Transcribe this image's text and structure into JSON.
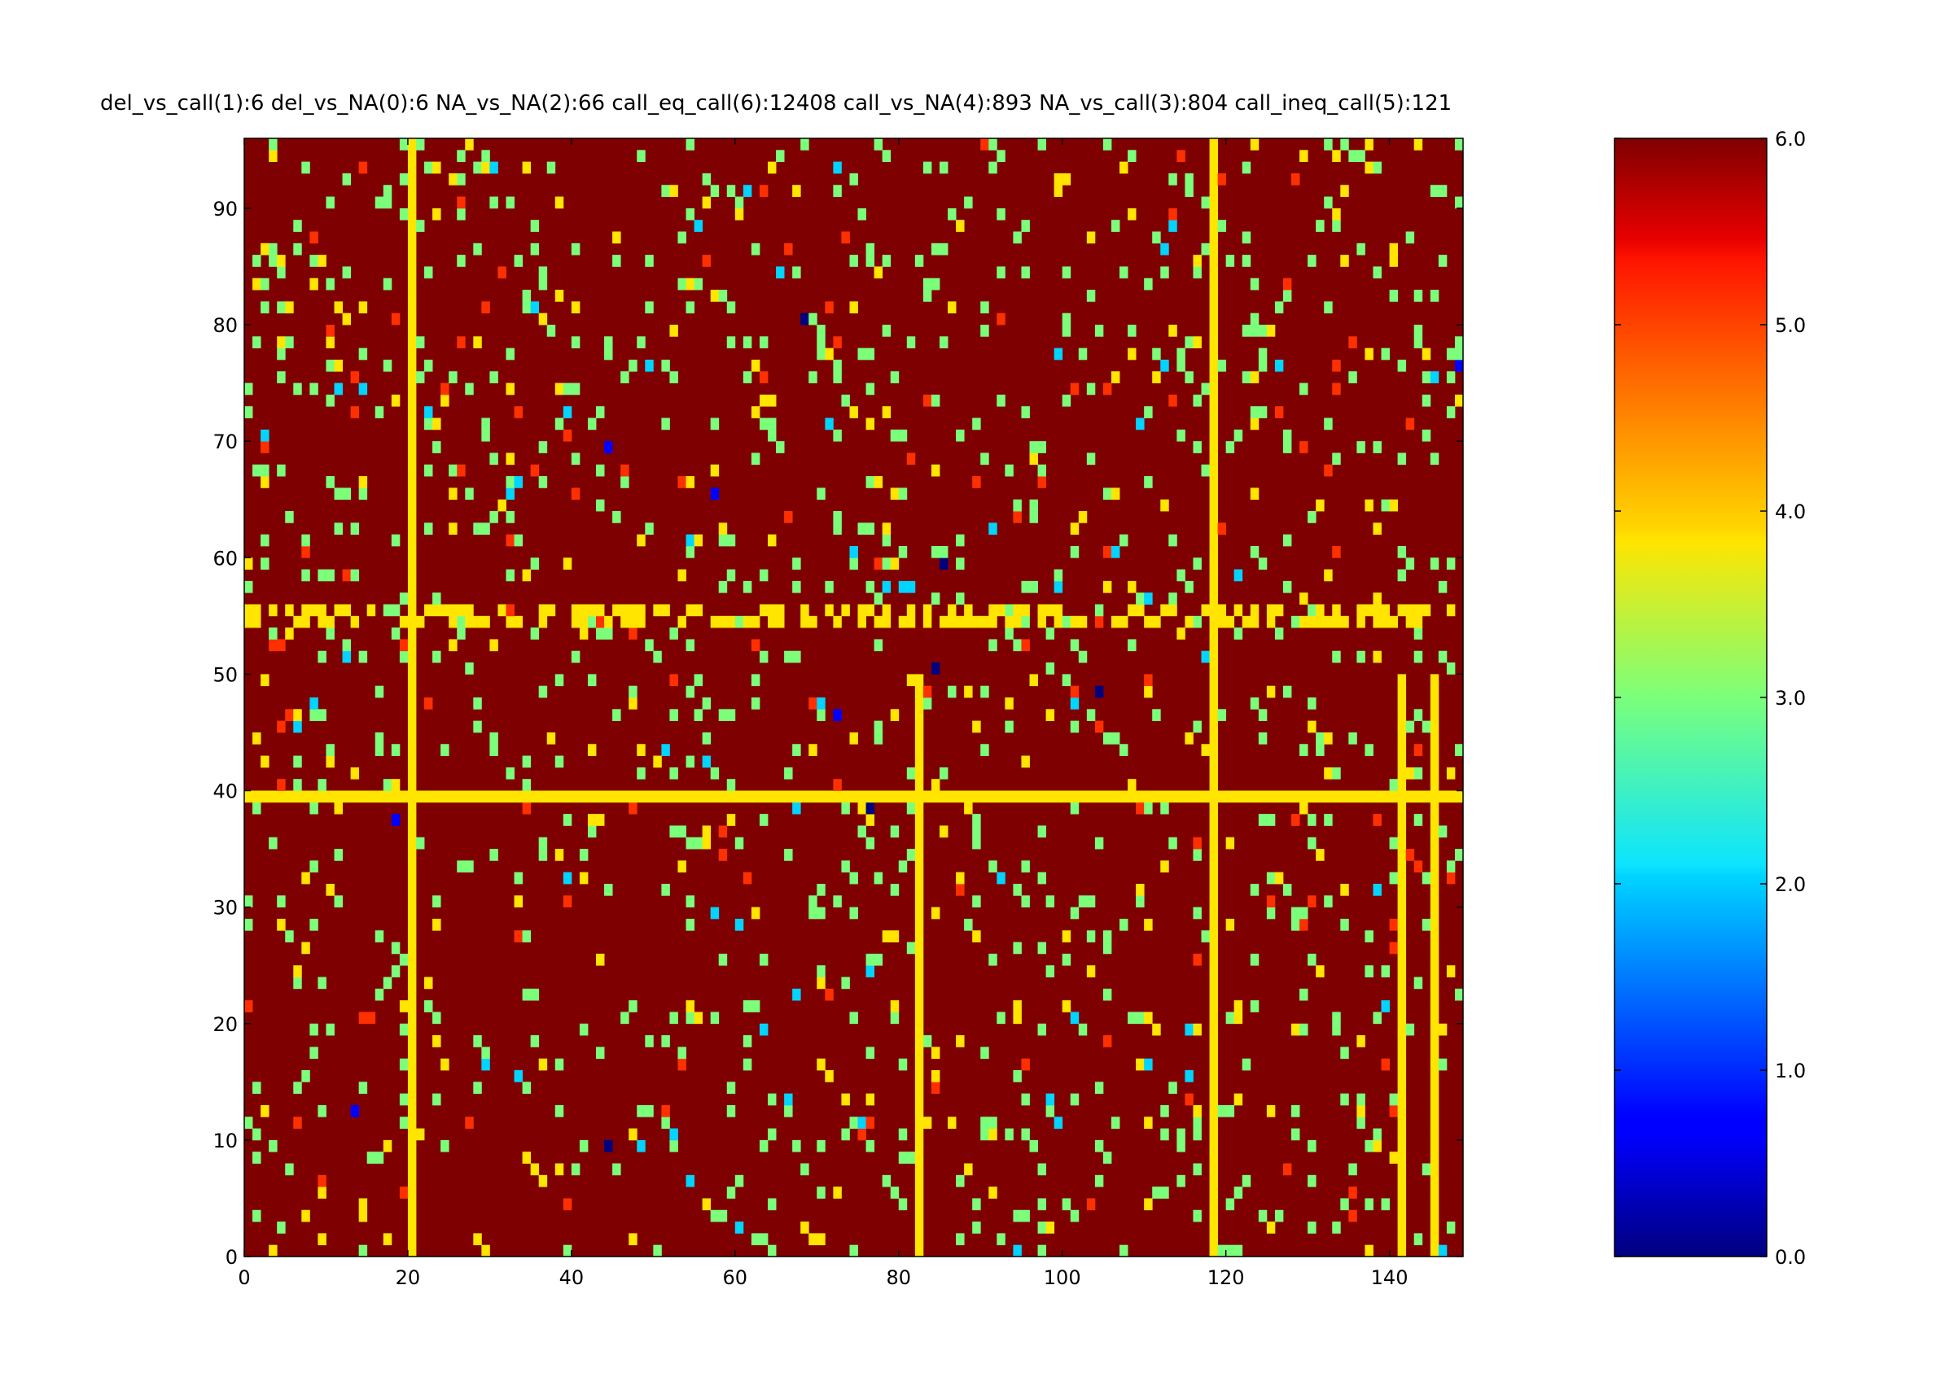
{
  "chart_data": {
    "type": "heatmap",
    "title": "del_vs_call(1):6 del_vs_NA(0):6 NA_vs_NA(2):66 call_eq_call(6):12408 call_vs_NA(4):893 NA_vs_call(3):804 call_ineq_call(5):121",
    "xlabel": "",
    "ylabel": "",
    "xlim": [
      0,
      149
    ],
    "ylim": [
      0,
      96
    ],
    "x_ticks": [
      "0",
      "20",
      "40",
      "60",
      "80",
      "100",
      "120",
      "140"
    ],
    "y_ticks": [
      "0",
      "10",
      "20",
      "30",
      "40",
      "50",
      "60",
      "70",
      "80",
      "90"
    ],
    "colorbar": {
      "range": [
        0,
        6
      ],
      "ticks": [
        "0.0",
        "1.0",
        "2.0",
        "3.0",
        "4.0",
        "5.0",
        "6.0"
      ],
      "colormap": "jet"
    },
    "categories": [
      {
        "label": "del_vs_NA",
        "value": 0,
        "count": 6
      },
      {
        "label": "del_vs_call",
        "value": 1,
        "count": 6
      },
      {
        "label": "NA_vs_NA",
        "value": 2,
        "count": 66
      },
      {
        "label": "NA_vs_call",
        "value": 3,
        "count": 804
      },
      {
        "label": "call_vs_NA",
        "value": 4,
        "count": 893
      },
      {
        "label": "call_ineq_call",
        "value": 5,
        "count": 121
      },
      {
        "label": "call_eq_call",
        "value": 6,
        "count": 12408
      }
    ],
    "grid_size": {
      "columns": 149,
      "rows": 96
    },
    "background_value": 6,
    "full_columns_value_4": [
      20,
      118
    ],
    "partial_columns_value_4": [
      {
        "x": 82,
        "y_to": 49
      },
      {
        "x": 141,
        "y_to": 49
      },
      {
        "x": 145,
        "y_to": 49
      }
    ],
    "full_rows_value_4": [
      39
    ],
    "dense_rows_value_4": [
      54,
      55
    ],
    "palette": {
      "0": "#00007f",
      "1": "#0000ff",
      "2": "#00d4ff",
      "3": "#7bff7b",
      "4": "#ffe500",
      "5": "#ff3000",
      "6": "#7f0000"
    }
  }
}
